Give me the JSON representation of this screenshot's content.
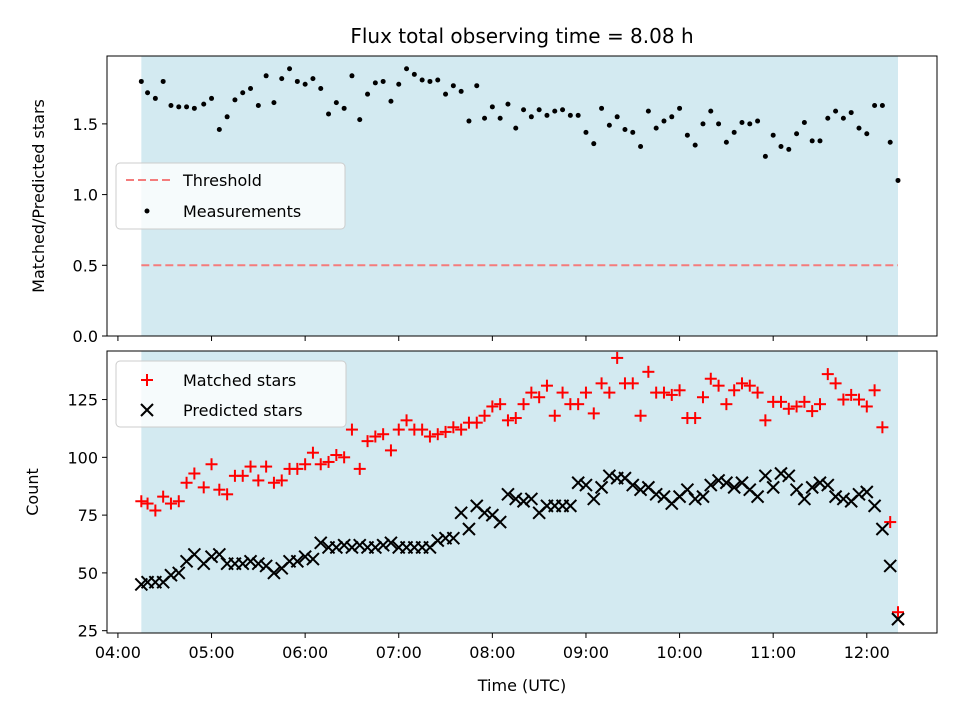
{
  "chart_data": [
    {
      "type": "scatter",
      "title": "Flux total observing time = 8.08 h",
      "xlabel": "",
      "ylabel": "Matched/Predicted stars",
      "xlim": [
        "03:53",
        "12:45"
      ],
      "ylim": [
        0,
        1.98
      ],
      "yticks": [
        "0.0",
        "0.5",
        "1.0",
        "1.5"
      ],
      "ytick_values": [
        0.0,
        0.5,
        1.0,
        1.5
      ],
      "shaded_span": {
        "start": "04:15",
        "end": "12:20",
        "color": "#d3eaf1"
      },
      "threshold": {
        "name": "Threshold",
        "value": 0.5,
        "color": "#f47c7c"
      },
      "legend": {
        "position": "center-left",
        "items": [
          "Threshold",
          "Measurements"
        ]
      },
      "series": [
        {
          "name": "Measurements",
          "marker": "dot",
          "color": "#000000",
          "x": [
            "04:15",
            "04:19",
            "04:24",
            "04:29",
            "04:34",
            "04:39",
            "04:44",
            "04:49",
            "04:55",
            "05:00",
            "05:05",
            "05:10",
            "05:15",
            "05:20",
            "05:25",
            "05:30",
            "05:35",
            "05:40",
            "05:45",
            "05:50",
            "05:55",
            "06:00",
            "06:05",
            "06:10",
            "06:15",
            "06:20",
            "06:25",
            "06:30",
            "06:35",
            "06:40",
            "06:45",
            "06:50",
            "06:55",
            "07:00",
            "07:05",
            "07:10",
            "07:15",
            "07:20",
            "07:25",
            "07:30",
            "07:35",
            "07:40",
            "07:45",
            "07:50",
            "07:55",
            "08:00",
            "08:05",
            "08:10",
            "08:15",
            "08:20",
            "08:25",
            "08:30",
            "08:35",
            "08:40",
            "08:45",
            "08:50",
            "08:55",
            "09:00",
            "09:05",
            "09:10",
            "09:15",
            "09:20",
            "09:25",
            "09:30",
            "09:35",
            "09:40",
            "09:45",
            "09:50",
            "09:55",
            "10:00",
            "10:05",
            "10:10",
            "10:15",
            "10:20",
            "10:25",
            "10:30",
            "10:35",
            "10:40",
            "10:45",
            "10:50",
            "10:55",
            "11:00",
            "11:05",
            "11:10",
            "11:15",
            "11:20",
            "11:25",
            "11:30",
            "11:35",
            "11:40",
            "11:45",
            "11:50",
            "11:55",
            "12:00",
            "12:05",
            "12:10",
            "12:15",
            "12:20"
          ],
          "y": [
            1.8,
            1.72,
            1.68,
            1.8,
            1.63,
            1.62,
            1.62,
            1.61,
            1.64,
            1.68,
            1.46,
            1.55,
            1.67,
            1.72,
            1.75,
            1.63,
            1.84,
            1.65,
            1.82,
            1.89,
            1.8,
            1.78,
            1.82,
            1.75,
            1.57,
            1.65,
            1.61,
            1.84,
            1.53,
            1.71,
            1.79,
            1.8,
            1.66,
            1.78,
            1.89,
            1.85,
            1.81,
            1.8,
            1.81,
            1.71,
            1.77,
            1.73,
            1.52,
            1.77,
            1.54,
            1.62,
            1.54,
            1.64,
            1.47,
            1.6,
            1.55,
            1.6,
            1.56,
            1.59,
            1.6,
            1.56,
            1.56,
            1.44,
            1.36,
            1.61,
            1.49,
            1.55,
            1.46,
            1.44,
            1.34,
            1.59,
            1.47,
            1.52,
            1.55,
            1.61,
            1.42,
            1.35,
            1.5,
            1.59,
            1.5,
            1.37,
            1.44,
            1.51,
            1.5,
            1.52,
            1.27,
            1.42,
            1.34,
            1.32,
            1.43,
            1.51,
            1.38,
            1.38,
            1.54,
            1.59,
            1.54,
            1.58,
            1.47,
            1.43,
            1.63,
            1.63,
            1.37,
            1.1
          ]
        }
      ]
    },
    {
      "type": "scatter",
      "title": "",
      "xlabel": "Time (UTC)",
      "ylabel": "Count",
      "xlim": [
        "03:53",
        "12:45"
      ],
      "ylim": [
        24,
        146
      ],
      "xticks": [
        "04:00",
        "05:00",
        "06:00",
        "07:00",
        "08:00",
        "09:00",
        "10:00",
        "11:00",
        "12:00"
      ],
      "yticks": [
        "25",
        "50",
        "75",
        "100",
        "125"
      ],
      "ytick_values": [
        25,
        50,
        75,
        100,
        125
      ],
      "shaded_span": {
        "start": "04:15",
        "end": "12:20",
        "color": "#d3eaf1"
      },
      "legend": {
        "position": "top-left",
        "items": [
          "Matched stars",
          "Predicted stars"
        ]
      },
      "series": [
        {
          "name": "Matched stars",
          "marker": "plus",
          "color": "#ff0000",
          "x": [
            "04:15",
            "04:19",
            "04:24",
            "04:29",
            "04:34",
            "04:39",
            "04:44",
            "04:49",
            "04:55",
            "05:00",
            "05:05",
            "05:10",
            "05:15",
            "05:20",
            "05:25",
            "05:30",
            "05:35",
            "05:40",
            "05:45",
            "05:50",
            "05:55",
            "06:00",
            "06:05",
            "06:10",
            "06:15",
            "06:20",
            "06:25",
            "06:30",
            "06:35",
            "06:40",
            "06:45",
            "06:50",
            "06:55",
            "07:00",
            "07:05",
            "07:10",
            "07:15",
            "07:20",
            "07:25",
            "07:30",
            "07:35",
            "07:40",
            "07:45",
            "07:50",
            "07:55",
            "08:00",
            "08:05",
            "08:10",
            "08:15",
            "08:20",
            "08:25",
            "08:30",
            "08:35",
            "08:40",
            "08:45",
            "08:50",
            "08:55",
            "09:00",
            "09:05",
            "09:10",
            "09:15",
            "09:20",
            "09:25",
            "09:30",
            "09:35",
            "09:40",
            "09:45",
            "09:50",
            "09:55",
            "10:00",
            "10:05",
            "10:10",
            "10:15",
            "10:20",
            "10:25",
            "10:30",
            "10:35",
            "10:40",
            "10:45",
            "10:50",
            "10:55",
            "11:00",
            "11:05",
            "11:10",
            "11:15",
            "11:20",
            "11:25",
            "11:30",
            "11:35",
            "11:40",
            "11:45",
            "11:50",
            "11:55",
            "12:00",
            "12:05",
            "12:10",
            "12:15",
            "12:20"
          ],
          "y": [
            81,
            80,
            77,
            83,
            80,
            81,
            89,
            93,
            87,
            97,
            86,
            84,
            92,
            92,
            96,
            90,
            96,
            89,
            90,
            95,
            95,
            97,
            102,
            97,
            98,
            101,
            100,
            112,
            95,
            107,
            109,
            110,
            103,
            112,
            116,
            112,
            112,
            109,
            110,
            111,
            113,
            112,
            115,
            115,
            118,
            122,
            123,
            116,
            117,
            123,
            128,
            126,
            131,
            118,
            128,
            123,
            123,
            128,
            119,
            132,
            128,
            143,
            132,
            132,
            118,
            137,
            128,
            128,
            127,
            129,
            117,
            117,
            126,
            134,
            131,
            123,
            129,
            132,
            131,
            128,
            116,
            124,
            124,
            121,
            122,
            124,
            120,
            123,
            136,
            132,
            125,
            127,
            125,
            122,
            129,
            113,
            72,
            33
          ]
        },
        {
          "name": "Predicted stars",
          "marker": "x",
          "color": "#000000",
          "x": [
            "04:15",
            "04:19",
            "04:24",
            "04:29",
            "04:34",
            "04:39",
            "04:44",
            "04:49",
            "04:55",
            "05:00",
            "05:05",
            "05:10",
            "05:15",
            "05:20",
            "05:25",
            "05:30",
            "05:35",
            "05:40",
            "05:45",
            "05:50",
            "05:55",
            "06:00",
            "06:05",
            "06:10",
            "06:15",
            "06:20",
            "06:25",
            "06:30",
            "06:35",
            "06:40",
            "06:45",
            "06:50",
            "06:55",
            "07:00",
            "07:05",
            "07:10",
            "07:15",
            "07:20",
            "07:25",
            "07:30",
            "07:35",
            "07:40",
            "07:45",
            "07:50",
            "07:55",
            "08:00",
            "08:05",
            "08:10",
            "08:15",
            "08:20",
            "08:25",
            "08:30",
            "08:35",
            "08:40",
            "08:45",
            "08:50",
            "08:55",
            "09:00",
            "09:05",
            "09:10",
            "09:15",
            "09:20",
            "09:25",
            "09:30",
            "09:35",
            "09:40",
            "09:45",
            "09:50",
            "09:55",
            "10:00",
            "10:05",
            "10:10",
            "10:15",
            "10:20",
            "10:25",
            "10:30",
            "10:35",
            "10:40",
            "10:45",
            "10:50",
            "10:55",
            "11:00",
            "11:05",
            "11:10",
            "11:15",
            "11:20",
            "11:25",
            "11:30",
            "11:35",
            "11:40",
            "11:45",
            "11:50",
            "11:55",
            "12:00",
            "12:05",
            "12:10",
            "12:15",
            "12:20"
          ],
          "y": [
            45,
            46,
            46,
            46,
            49,
            50,
            55,
            58,
            54,
            57,
            58,
            54,
            54,
            54,
            55,
            54,
            53,
            50,
            52,
            55,
            55,
            57,
            56,
            63,
            61,
            61,
            62,
            61,
            62,
            61,
            61,
            62,
            63,
            61,
            61,
            61,
            61,
            61,
            64,
            65,
            65,
            76,
            69,
            79,
            76,
            75,
            72,
            84,
            82,
            81,
            82,
            76,
            79,
            79,
            79,
            79,
            89,
            88,
            82,
            87,
            92,
            91,
            91,
            88,
            86,
            87,
            84,
            83,
            80,
            83,
            86,
            82,
            83,
            88,
            90,
            89,
            87,
            89,
            86,
            83,
            92,
            87,
            93,
            92,
            86,
            82,
            87,
            89,
            88,
            83,
            82,
            81,
            84,
            85,
            79,
            69,
            53,
            30
          ]
        }
      ]
    }
  ]
}
